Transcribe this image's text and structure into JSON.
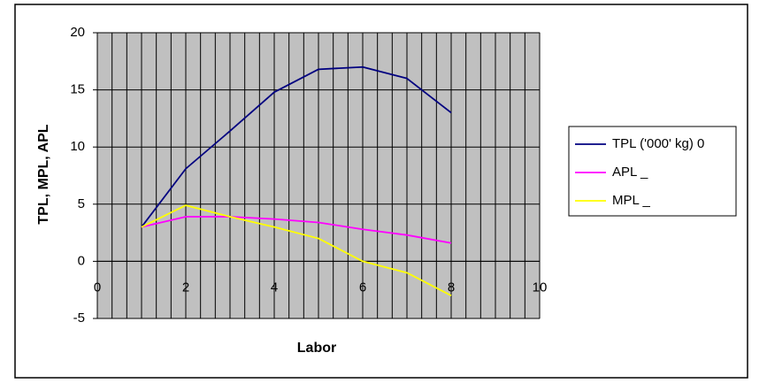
{
  "chart_data": {
    "type": "line",
    "x_label": "Labor",
    "y_label": "TPL, MPL, APL",
    "x": [
      1,
      2,
      3,
      4,
      5,
      6,
      7,
      8
    ],
    "series": [
      {
        "name": "TPL ('000' kg) 0",
        "color": "#000080",
        "values": [
          3,
          8.1,
          11.4,
          14.8,
          16.8,
          17,
          16,
          13
        ]
      },
      {
        "name": "APL _",
        "color": "#ff00ff",
        "values": [
          3,
          3.9,
          3.9,
          3.7,
          3.4,
          2.8,
          2.3,
          1.6
        ]
      },
      {
        "name": "MPL _",
        "color": "#ffff00",
        "values": [
          3,
          4.9,
          3.9,
          3,
          2,
          0,
          -1,
          -3
        ]
      }
    ],
    "xlim": [
      0,
      10
    ],
    "xticks": [
      0,
      2,
      4,
      6,
      8,
      10
    ],
    "ylim": [
      -5,
      20
    ],
    "yticks": [
      -5,
      0,
      5,
      10,
      15,
      20
    ],
    "grid": true,
    "plot_background": "#c0c0c0",
    "legend": "right"
  }
}
